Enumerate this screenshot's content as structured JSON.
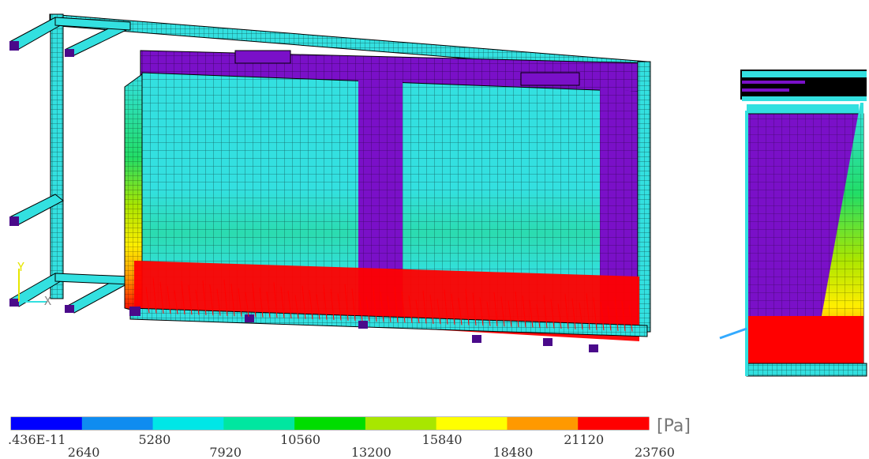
{
  "figure": {
    "triad": {
      "y_label": "Y",
      "x_label": "X"
    },
    "colorbar": {
      "unit": "[Pa]",
      "colors": [
        "#0000ff",
        "#0f8cf0",
        "#00e6e6",
        "#00e6a0",
        "#00dd00",
        "#a8e600",
        "#ffff00",
        "#ff9900",
        "#ff0000"
      ],
      "labels": [
        ".436E-11",
        "2640",
        "5280",
        "7920",
        "10560",
        "13200",
        "15840",
        "18480",
        "21120",
        "23760"
      ]
    },
    "palette": {
      "mesh_cyan": "#33e0e0",
      "mesh_purple": "#7a10c8",
      "mesh_dark_purple": "#4a0a8a",
      "grid_line": "#000000",
      "arrow_red": "#ff0000"
    }
  }
}
